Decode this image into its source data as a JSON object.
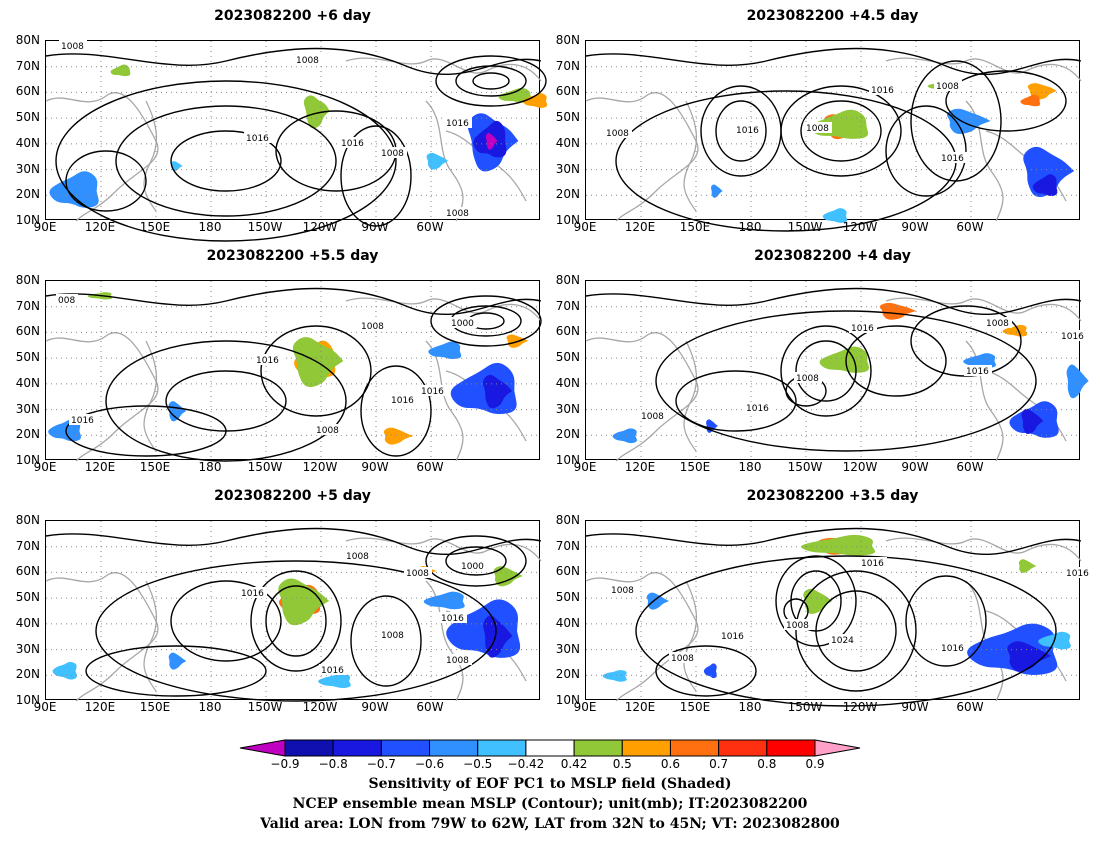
{
  "panels": [
    {
      "title": "2023082200 +6 day",
      "contour_labels": [
        "1008",
        "1008",
        "1016",
        "1016",
        "1008",
        "1016",
        "1008"
      ]
    },
    {
      "title": "2023082200 +4.5 day",
      "contour_labels": [
        "1008",
        "1016",
        "1008",
        "1016",
        "1008",
        "1016"
      ]
    },
    {
      "title": "2023082200 +5.5 day",
      "contour_labels": [
        "008",
        "1008",
        "1000",
        "1016",
        "1016",
        "1016",
        "1008",
        "1016"
      ]
    },
    {
      "title": "2023082200 +4 day",
      "contour_labels": [
        "1016",
        "1008",
        "1016",
        "1008",
        "1016",
        "1008",
        "1016"
      ]
    },
    {
      "title": "2023082200 +5 day",
      "contour_labels": [
        "1008",
        "1000",
        "1008",
        "1016",
        "1008",
        "1016",
        "1016",
        "1008"
      ]
    },
    {
      "title": "2023082200 +3.5 day",
      "contour_labels": [
        "1016",
        "1016",
        "1008",
        "1008",
        "1016",
        "1024",
        "1008",
        "1016"
      ]
    }
  ],
  "axes": {
    "lat_labels": [
      "80N",
      "70N",
      "60N",
      "50N",
      "40N",
      "30N",
      "20N",
      "10N"
    ],
    "lon_labels": [
      "90E",
      "120E",
      "150E",
      "180",
      "150W",
      "120W",
      "90W",
      "60W"
    ]
  },
  "colorbar": {
    "labels": [
      "−0.9",
      "−0.8",
      "−0.7",
      "−0.6",
      "−0.5",
      "−0.42",
      "0.42",
      "0.5",
      "0.6",
      "0.7",
      "0.8",
      "0.9"
    ],
    "colors": [
      "#c000c0",
      "#1010b0",
      "#1818e0",
      "#2050ff",
      "#3090ff",
      "#40c0ff",
      "#ffffff",
      "#90c838",
      "#ffa000",
      "#ff7010",
      "#ff3010",
      "#ff0000",
      "#ffa0c8"
    ]
  },
  "captions": [
    "Sensitivity of EOF PC1 to MSLP field (Shaded)",
    "NCEP ensemble mean MSLP (Contour); unit(mb); IT:2023082200",
    "Valid area: LON from 79W to 62W, LAT from 32N to 45N; VT: 2023082800"
  ]
}
